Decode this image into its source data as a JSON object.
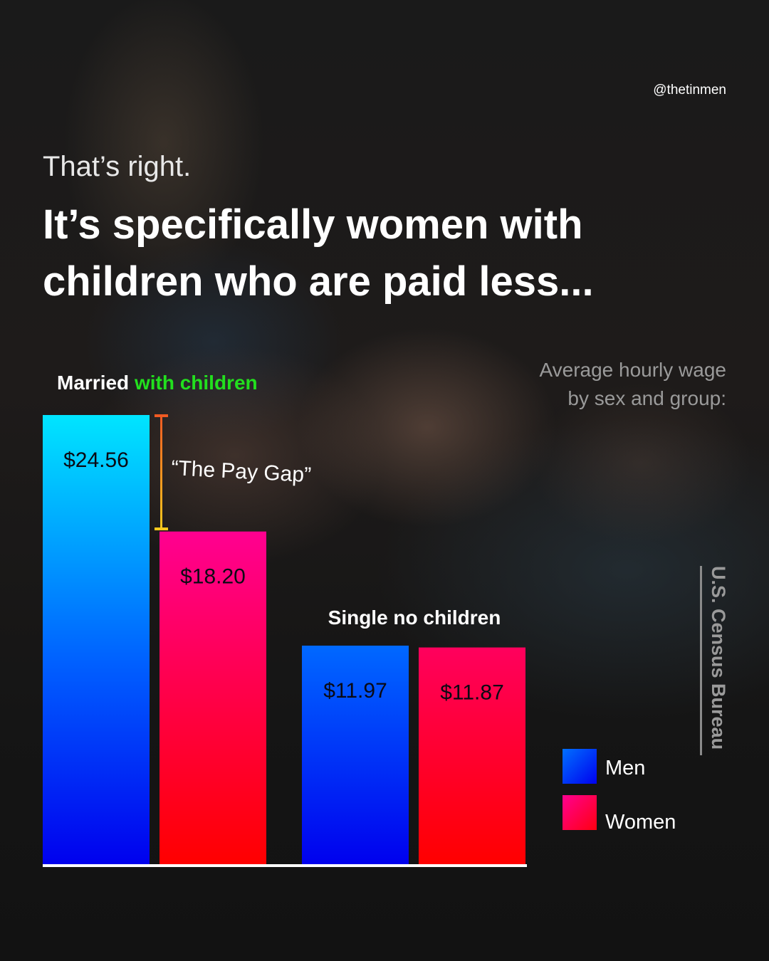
{
  "handle": "@thetinmen",
  "lead": "That’s right.",
  "title_lines": [
    "It’s specifically women with",
    "children who are paid less..."
  ],
  "subtitle_lines": [
    "Average hourly wage",
    "by sex and group:"
  ],
  "source": "U.S. Census Bureau",
  "chart_data": {
    "type": "bar",
    "groups": [
      {
        "label_parts": [
          "Married ",
          "with children"
        ],
        "label_highlight_color": "#22e01e"
      },
      {
        "label_parts": [
          "Single no children"
        ]
      }
    ],
    "series": [
      {
        "name": "Men",
        "values": [
          24.56,
          11.97
        ],
        "value_labels": [
          "$24.56",
          "$11.97"
        ],
        "colors": [
          "#00e5ff",
          "#0000ee"
        ]
      },
      {
        "name": "Women",
        "values": [
          18.2,
          11.87
        ],
        "value_labels": [
          "$18.20",
          "$11.87"
        ],
        "colors": [
          "#ff0090",
          "#ff0000"
        ]
      }
    ],
    "annotation": "“The Pay Gap”",
    "ylim": [
      0,
      24.56
    ],
    "grid": false,
    "legend": "bottom-right"
  }
}
